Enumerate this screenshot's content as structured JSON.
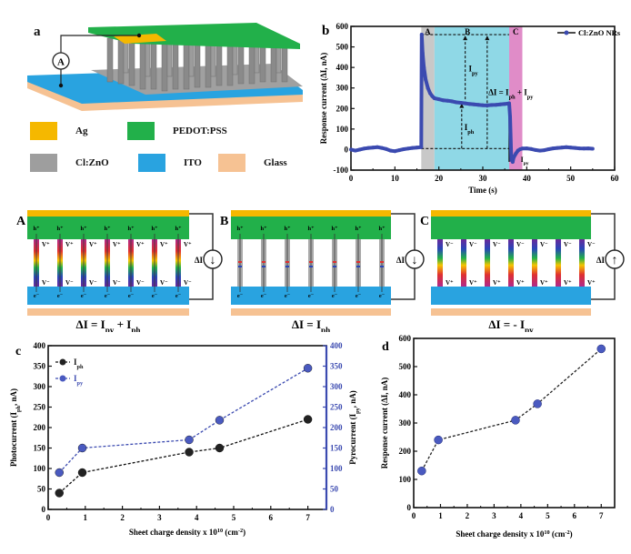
{
  "panel_a": {
    "label": "a",
    "ammeter": "A",
    "legend": [
      {
        "name": "Ag",
        "color": "#f5b800"
      },
      {
        "name": "PEDOT:PSS",
        "color": "#22b04a"
      },
      {
        "name": "Cl:ZnO",
        "color": "#9e9e9e"
      },
      {
        "name": "ITO",
        "color": "#29a3e0"
      },
      {
        "name": "Glass",
        "color": "#f6c293"
      }
    ]
  },
  "panel_states": [
    {
      "label": "A",
      "equation": "ΔI = I_py + I_ph",
      "eq_main": "ΔI = I",
      "eq_sub1": "py",
      "eq_mid": " + I",
      "eq_sub2": "ph",
      "current_label": "ΔI",
      "arrow": "↓",
      "top_carrier": "h⁺",
      "bot_carrier": "e⁻",
      "top_pol": "V⁺",
      "bot_pol": "V⁻"
    },
    {
      "label": "B",
      "equation": "ΔI = I_ph",
      "eq_main": "ΔI = I",
      "eq_sub1": "ph",
      "current_label": "ΔI",
      "arrow": "↓",
      "top_carrier": "h⁺",
      "bot_carrier": "e⁻"
    },
    {
      "label": "C",
      "equation": "ΔI = - I_py",
      "eq_main": "ΔI = - I",
      "eq_sub1": "py",
      "current_label": "ΔI",
      "arrow": "↑",
      "top_pol": "V⁻",
      "bot_pol": "V⁺"
    }
  ],
  "colors": {
    "ag": "#f5b800",
    "pedot": "#22b04a",
    "zno": "#9e9e9e",
    "ito": "#29a3e0",
    "glass": "#f6c293",
    "series_blue": "#3b4ab0",
    "region_a": "#c8c8c8",
    "region_b": "#8fd8e6",
    "region_c": "#e08cc8"
  },
  "chart_data": [
    {
      "id": "b",
      "type": "line",
      "panel_label": "b",
      "title": "",
      "xlabel": "Time (s)",
      "ylabel": "Response current (ΔI, nA)",
      "xlim": [
        0,
        60
      ],
      "ylim": [
        -100,
        600
      ],
      "xticks": [
        0,
        10,
        20,
        30,
        40,
        50,
        60
      ],
      "yticks": [
        -100,
        0,
        100,
        200,
        300,
        400,
        500,
        600
      ],
      "legend": {
        "entries": [
          "Cl:ZnO NRs"
        ],
        "placement": "top-right"
      },
      "regions": [
        {
          "name": "A",
          "x": [
            16,
            19
          ]
        },
        {
          "name": "B",
          "x": [
            19,
            36
          ]
        },
        {
          "name": "C",
          "x": [
            36,
            39
          ]
        }
      ],
      "annotations": [
        "A",
        "B",
        "C",
        "I_py",
        "I_ph",
        "ΔI = I_ph + I_py",
        "I_py"
      ],
      "series": [
        {
          "name": "Cl:ZnO NRs",
          "x": [
            0,
            1,
            2,
            3,
            4,
            5,
            6,
            7,
            8,
            9,
            10,
            11,
            12,
            13,
            14,
            15,
            16,
            16.1,
            16.3,
            16.6,
            17,
            17.5,
            18,
            18.5,
            19,
            20,
            21,
            22,
            23,
            24,
            25,
            26,
            27,
            28,
            29,
            30,
            31,
            32,
            33,
            34,
            35,
            36,
            36.2,
            36.5,
            36.8,
            37,
            37.5,
            38,
            38.5,
            39,
            40,
            41,
            42,
            43,
            44,
            45,
            46,
            47,
            48,
            49,
            50,
            51,
            52,
            53,
            54,
            55
          ],
          "y": [
            0,
            -5,
            0,
            5,
            8,
            10,
            12,
            8,
            3,
            -5,
            -8,
            -3,
            2,
            5,
            8,
            10,
            12,
            560,
            470,
            400,
            340,
            300,
            275,
            260,
            250,
            245,
            240,
            238,
            235,
            230,
            228,
            225,
            222,
            220,
            218,
            216,
            215,
            217,
            218,
            220,
            222,
            225,
            160,
            -50,
            -60,
            -40,
            -20,
            -5,
            2,
            5,
            6,
            3,
            -2,
            -5,
            -3,
            2,
            6,
            8,
            10,
            12,
            10,
            8,
            6,
            5,
            6,
            4
          ]
        }
      ]
    },
    {
      "id": "c",
      "type": "line",
      "panel_label": "c",
      "title": "",
      "xlabel": "Sheet charge density x 10^10 (cm^-2)",
      "ylabel": "Photocurrent (I_ph, nA)",
      "ylabel_right": "Pyrocurrent (I_py, nA)",
      "xlim": [
        0,
        7.5
      ],
      "ylim": [
        0,
        400
      ],
      "ylim_right": [
        0,
        400
      ],
      "xticks": [
        0,
        1,
        2,
        3,
        4,
        5,
        6,
        7
      ],
      "yticks": [
        0,
        50,
        100,
        150,
        200,
        250,
        300,
        350,
        400
      ],
      "legend": {
        "entries": [
          "I_ph",
          "I_py"
        ],
        "placement": "top-left"
      },
      "x": [
        0.3,
        0.92,
        3.8,
        4.62,
        7.0
      ],
      "series": [
        {
          "name": "I_ph",
          "axis": "left",
          "values": [
            40,
            90,
            140,
            150,
            220
          ]
        },
        {
          "name": "I_py",
          "axis": "right",
          "values": [
            90,
            150,
            170,
            218,
            345
          ]
        }
      ]
    },
    {
      "id": "d",
      "type": "line",
      "panel_label": "d",
      "title": "",
      "xlabel": "Sheet charge density x 10^10 (cm^-2)",
      "ylabel": "Response current (ΔI, nA)",
      "xlim": [
        0,
        7.5
      ],
      "ylim": [
        0,
        600
      ],
      "xticks": [
        0,
        1,
        2,
        3,
        4,
        5,
        6,
        7
      ],
      "yticks": [
        0,
        100,
        200,
        300,
        400,
        500,
        600
      ],
      "x": [
        0.3,
        0.92,
        3.8,
        4.62,
        7.0
      ],
      "series": [
        {
          "name": "ΔI",
          "values": [
            130,
            240,
            310,
            368,
            563
          ]
        }
      ]
    }
  ]
}
